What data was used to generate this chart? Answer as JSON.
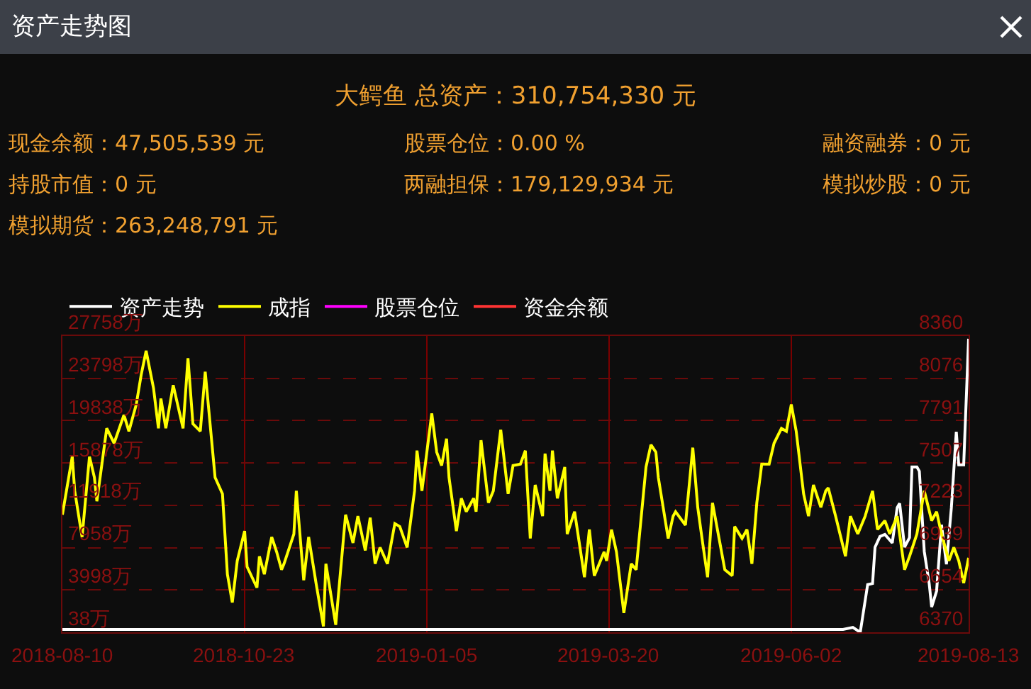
{
  "chart_data": {
    "type": "line",
    "title": "资产走势图",
    "subtitle": "大鳄鱼 总资产：310,754,330 元",
    "annotations": [
      "现金余额：47,505,539 元",
      "股票仓位：0.00 %",
      "融资融券：0 元",
      "持股市值：0 元",
      "两融担保：179,129,934 元",
      "模拟炒股：0 元",
      "模拟期货：263,248,791 元"
    ],
    "legend": "top left",
    "grid": true,
    "marker": "none",
    "line_style": "solid",
    "xlim": [
      "2018-08-10",
      "2019-08-13"
    ],
    "xticks": [
      "2018-08-10",
      "2018-10-23",
      "2019-01-05",
      "2019-03-20",
      "2019-06-02",
      "2019-08-13"
    ],
    "ylim": [
      38,
      27758
    ],
    "yticks": [
      {
        "value": 38,
        "label": "38万"
      },
      {
        "value": 3998,
        "label": "3998万"
      },
      {
        "value": 7958,
        "label": "7958万"
      },
      {
        "value": 11918,
        "label": "11918万"
      },
      {
        "value": 15878,
        "label": "15878万"
      },
      {
        "value": 19838,
        "label": "19838万"
      },
      {
        "value": 23798,
        "label": "23798万"
      },
      {
        "value": 27758,
        "label": "27758万"
      }
    ],
    "y2lim": [
      6370,
      8360
    ],
    "y2ticks": [
      6370,
      6654,
      6939,
      7223,
      7507,
      7791,
      8076,
      8360
    ],
    "series": [
      {
        "name": "资产走势",
        "color": "#ffffff",
        "axis": "y",
        "x": [
          "2018-08-10",
          "2019-06-23",
          "2019-06-27",
          "2019-06-30",
          "2019-07-03",
          "2019-07-05",
          "2019-07-06",
          "2019-07-08",
          "2019-07-10",
          "2019-07-13",
          "2019-07-15",
          "2019-07-16",
          "2019-07-18",
          "2019-07-20",
          "2019-07-21",
          "2019-07-23",
          "2019-07-24",
          "2019-07-26",
          "2019-07-28",
          "2019-07-29",
          "2019-07-31",
          "2019-08-02",
          "2019-08-04",
          "2019-08-06",
          "2019-08-08",
          "2019-08-09",
          "2019-08-11",
          "2019-08-13"
        ],
        "values": [
          300,
          300,
          500,
          38,
          4500,
          4600,
          8000,
          9000,
          9200,
          8400,
          11700,
          12100,
          8000,
          8900,
          15500,
          15500,
          15100,
          7600,
          4600,
          2400,
          3900,
          10100,
          6400,
          11700,
          18800,
          15700,
          15700,
          27500
        ]
      },
      {
        "name": "成指",
        "color": "#ffff00",
        "axis": "y2",
        "x": [
          "2018-08-10",
          "2018-08-14",
          "2018-08-15",
          "2018-08-18",
          "2018-08-21",
          "2018-08-23",
          "2018-08-24",
          "2018-08-28",
          "2018-08-31",
          "2018-09-04",
          "2018-09-06",
          "2018-09-09",
          "2018-09-11",
          "2018-09-13",
          "2018-09-16",
          "2018-09-18",
          "2018-09-19",
          "2018-09-21",
          "2018-09-24",
          "2018-09-28",
          "2018-09-30",
          "2018-10-02",
          "2018-10-05",
          "2018-10-07",
          "2018-10-11",
          "2018-10-14",
          "2018-10-16",
          "2018-10-18",
          "2018-10-20",
          "2018-10-23",
          "2018-10-24",
          "2018-10-28",
          "2018-10-29",
          "2018-10-31",
          "2018-11-03",
          "2018-11-05",
          "2018-11-07",
          "2018-11-08",
          "2018-11-12",
          "2018-11-13",
          "2018-11-16",
          "2018-11-18",
          "2018-11-21",
          "2018-11-24",
          "2018-11-25",
          "2018-11-29",
          "2018-12-03",
          "2018-12-06",
          "2018-12-08",
          "2018-12-11",
          "2018-12-13",
          "2018-12-15",
          "2018-12-17",
          "2018-12-20",
          "2018-12-23",
          "2018-12-25",
          "2018-12-28",
          "2018-12-31",
          "2019-01-01",
          "2019-01-03",
          "2019-01-07",
          "2019-01-09",
          "2019-01-11",
          "2019-01-13",
          "2019-01-14",
          "2019-01-17",
          "2019-01-19",
          "2019-01-21",
          "2019-01-24",
          "2019-01-25",
          "2019-01-27",
          "2019-01-30",
          "2019-02-01",
          "2019-02-04",
          "2019-02-07",
          "2019-02-09",
          "2019-02-12",
          "2019-02-14",
          "2019-02-16",
          "2019-02-18",
          "2019-02-21",
          "2019-02-22",
          "2019-02-24",
          "2019-02-25",
          "2019-02-27",
          "2019-03-02",
          "2019-03-03",
          "2019-03-06",
          "2019-03-10",
          "2019-03-12",
          "2019-03-14",
          "2019-03-18",
          "2019-03-19",
          "2019-03-21",
          "2019-03-23",
          "2019-03-26",
          "2019-03-29",
          "2019-03-31",
          "2019-04-04",
          "2019-04-06",
          "2019-04-08",
          "2019-04-09",
          "2019-04-13",
          "2019-04-15",
          "2019-04-16",
          "2019-04-20",
          "2019-04-23",
          "2019-04-25",
          "2019-04-27",
          "2019-04-29",
          "2019-05-01",
          "2019-05-04",
          "2019-05-06",
          "2019-05-09",
          "2019-05-10",
          "2019-05-13",
          "2019-05-15",
          "2019-05-17",
          "2019-05-19",
          "2019-05-21",
          "2019-05-24",
          "2019-05-26",
          "2019-05-29",
          "2019-05-31",
          "2019-06-02",
          "2019-06-04",
          "2019-06-07",
          "2019-06-09",
          "2019-06-11",
          "2019-06-14",
          "2019-06-16",
          "2019-06-17",
          "2019-06-20",
          "2019-06-24",
          "2019-06-26",
          "2019-06-29",
          "2019-07-02",
          "2019-07-05",
          "2019-07-07",
          "2019-07-10",
          "2019-07-12",
          "2019-07-15",
          "2019-07-18",
          "2019-07-20",
          "2019-07-23",
          "2019-07-26",
          "2019-07-29",
          "2019-07-31",
          "2019-08-02",
          "2019-08-05",
          "2019-08-07",
          "2019-08-09",
          "2019-08-11",
          "2019-08-13"
        ],
        "values": [
          7160,
          7550,
          7320,
          7010,
          7550,
          7410,
          7250,
          7740,
          7640,
          7830,
          7720,
          7900,
          8100,
          8260,
          8010,
          7740,
          7940,
          7740,
          8030,
          7740,
          8210,
          7770,
          7720,
          8120,
          7410,
          7300,
          6760,
          6570,
          6850,
          7050,
          6810,
          6670,
          6880,
          6760,
          7010,
          6910,
          6790,
          6830,
          7030,
          7320,
          6720,
          7010,
          6700,
          6410,
          6830,
          6420,
          7160,
          6970,
          7150,
          6920,
          7140,
          6830,
          6940,
          6830,
          7100,
          7080,
          6940,
          7320,
          7590,
          7320,
          7840,
          7580,
          7490,
          7670,
          7410,
          7050,
          7270,
          7180,
          7270,
          7180,
          7660,
          7240,
          7320,
          7730,
          7300,
          7490,
          7500,
          7590,
          7000,
          7360,
          7150,
          7570,
          7320,
          7590,
          7270,
          7480,
          7030,
          7180,
          6740,
          7060,
          6750,
          6910,
          6850,
          7060,
          6910,
          6500,
          6830,
          6790,
          7480,
          7630,
          7580,
          7410,
          7000,
          7150,
          7180,
          7090,
          7610,
          7210,
          6970,
          6740,
          7240,
          6970,
          6790,
          6750,
          7080,
          7000,
          7060,
          6830,
          7240,
          7500,
          7500,
          7640,
          7740,
          7720,
          7900,
          7720,
          7300,
          7150,
          7360,
          7210,
          7320,
          7340,
          7150,
          6880,
          7150,
          7030,
          7150,
          7320,
          7060,
          7120,
          7030,
          7150,
          6790,
          6880,
          7030,
          7320,
          7120,
          7180,
          7030,
          6850,
          6940,
          6850,
          6700,
          6870
        ]
      },
      {
        "name": "股票仓位",
        "color": "#ff00ff",
        "axis": "y"
      },
      {
        "name": "资金余额",
        "color": "#ff3333",
        "axis": "y"
      }
    ]
  }
}
